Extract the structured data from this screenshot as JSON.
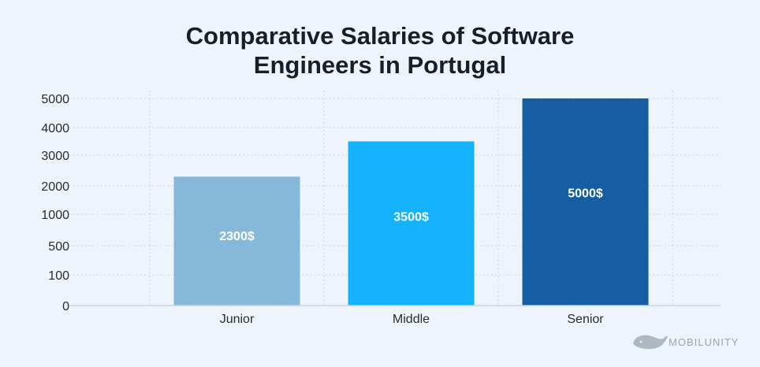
{
  "chart_data": {
    "type": "bar",
    "title_lines": [
      "Comparative Salaries of Software",
      "Engineers in Portugal"
    ],
    "categories": [
      "Junior",
      "Middle",
      "Senior"
    ],
    "values": [
      2300,
      3500,
      5000
    ],
    "value_labels": [
      "2300$",
      "3500$",
      "5000$"
    ],
    "bar_colors": [
      "#86b9d9",
      "#16b3fd",
      "#145ea1"
    ],
    "y_ticks": [
      "0",
      "100",
      "500",
      "1000",
      "2000",
      "3000",
      "4000",
      "5000"
    ],
    "y_scale": "categorical-ticks",
    "xlabel": "",
    "ylabel": "",
    "grid": true,
    "legend": "none"
  },
  "watermark": {
    "text": "MOBILUNITY",
    "icon": "whale-icon"
  }
}
